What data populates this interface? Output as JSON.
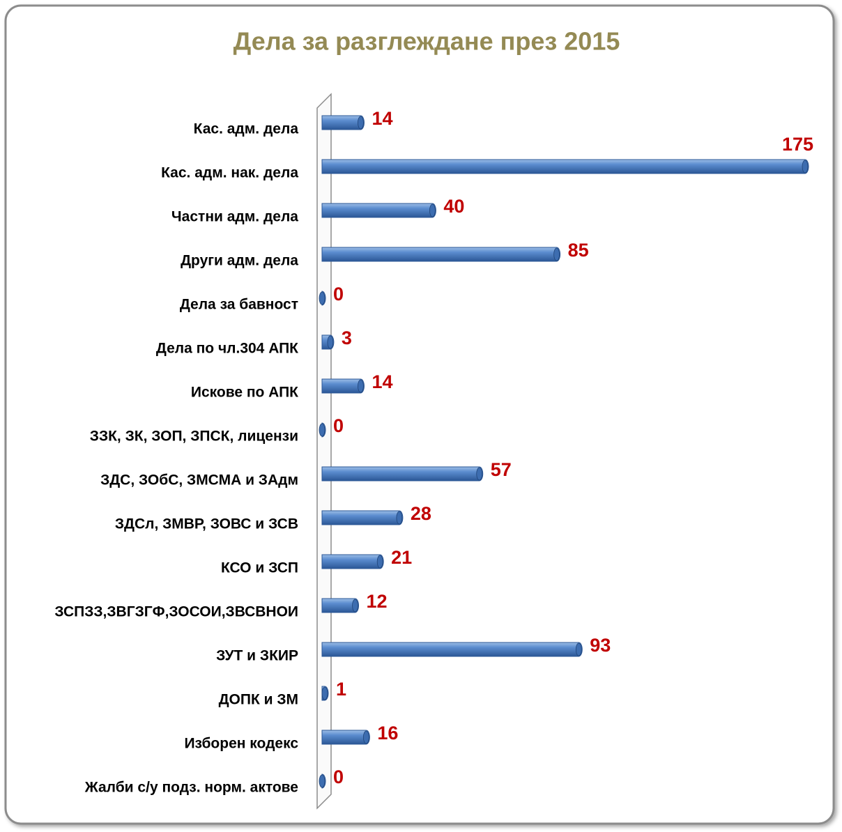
{
  "chart_data": {
    "type": "bar",
    "orientation": "horizontal",
    "title": "Дела за разглеждане през 2015",
    "categories": [
      "Кас. адм. дела",
      "Кас. адм. нак. дела",
      "Частни адм. дела",
      "Други адм. дела",
      "Дела за бавност",
      "Дела по чл.304 АПК",
      "Искове по АПК",
      "ЗЗК, ЗК, ЗОП, ЗПСК, лицензи",
      "ЗДС, ЗОбС, ЗМСМА и ЗАдм",
      "ЗДСл, ЗМВР, ЗОВС и ЗСВ",
      "КСО и ЗСП",
      "ЗСПЗЗ,ЗВГЗГФ,ЗОСОИ,ЗВСВНОИ",
      "ЗУТ и ЗКИР",
      "ДОПК и ЗМ",
      "Изборен кодекс",
      "Жалби с/у подз. норм. актове"
    ],
    "values": [
      14,
      175,
      40,
      85,
      0,
      3,
      14,
      0,
      57,
      28,
      21,
      12,
      93,
      1,
      16,
      0
    ],
    "color": "#4f81bd",
    "label_color": "#c00000"
  }
}
